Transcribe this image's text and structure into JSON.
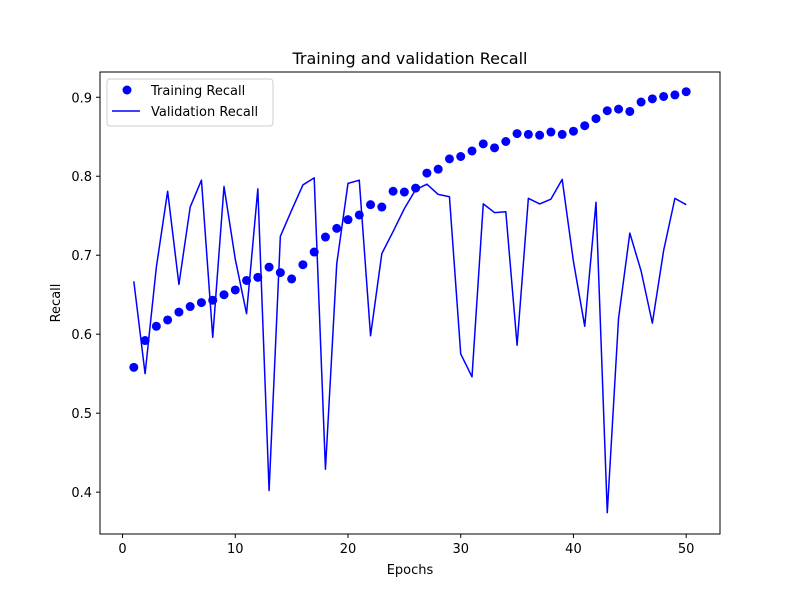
{
  "chart_data": {
    "type": "line",
    "title": "Training and validation Recall",
    "xlabel": "Epochs",
    "ylabel": "Recall",
    "xlim": [
      -2.0,
      53.0
    ],
    "ylim": [
      0.347,
      0.932
    ],
    "xticks": [
      0,
      10,
      20,
      30,
      40,
      50
    ],
    "yticks": [
      0.4,
      0.5,
      0.6,
      0.7,
      0.8,
      0.9
    ],
    "grid": false,
    "legend_position": "top-left",
    "color": "#0000ff",
    "x": [
      1,
      2,
      3,
      4,
      5,
      6,
      7,
      8,
      9,
      10,
      11,
      12,
      13,
      14,
      15,
      16,
      17,
      18,
      19,
      20,
      21,
      22,
      23,
      24,
      25,
      26,
      27,
      28,
      29,
      30,
      31,
      32,
      33,
      34,
      35,
      36,
      37,
      38,
      39,
      40,
      41,
      42,
      43,
      44,
      45,
      46,
      47,
      48,
      49,
      50
    ],
    "series": [
      {
        "name": "Training Recall",
        "style": "points",
        "values": [
          0.558,
          0.592,
          0.61,
          0.618,
          0.628,
          0.635,
          0.64,
          0.643,
          0.65,
          0.656,
          0.668,
          0.672,
          0.685,
          0.678,
          0.67,
          0.688,
          0.704,
          0.723,
          0.734,
          0.745,
          0.751,
          0.764,
          0.761,
          0.781,
          0.78,
          0.785,
          0.804,
          0.809,
          0.822,
          0.825,
          0.832,
          0.841,
          0.836,
          0.844,
          0.854,
          0.853,
          0.852,
          0.856,
          0.853,
          0.857,
          0.864,
          0.873,
          0.883,
          0.885,
          0.882,
          0.894,
          0.898,
          0.901,
          0.903,
          0.907
        ]
      },
      {
        "name": "Validation Recall",
        "style": "line",
        "values": [
          0.667,
          0.55,
          0.685,
          0.781,
          0.663,
          0.761,
          0.795,
          0.596,
          0.787,
          0.695,
          0.626,
          0.784,
          0.402,
          0.724,
          0.757,
          0.789,
          0.798,
          0.429,
          0.689,
          0.791,
          0.795,
          0.598,
          0.702,
          0.73,
          0.759,
          0.783,
          0.79,
          0.777,
          0.774,
          0.575,
          0.546,
          0.765,
          0.754,
          0.755,
          0.586,
          0.772,
          0.765,
          0.771,
          0.796,
          0.692,
          0.61,
          0.767,
          0.374,
          0.62,
          0.728,
          0.68,
          0.614,
          0.706,
          0.772,
          0.764
        ]
      }
    ]
  }
}
